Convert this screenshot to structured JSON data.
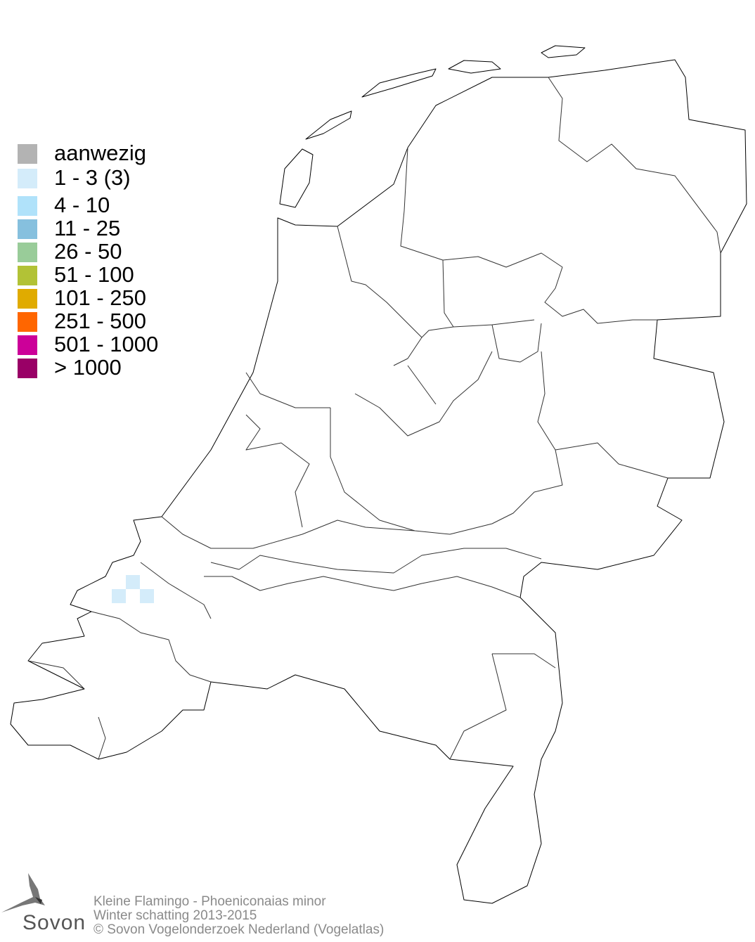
{
  "legend": {
    "items": [
      {
        "label": "aanwezig",
        "color": "#b3b3b3"
      },
      {
        "label": "1 - 3 (3)",
        "color": "#d4ecfa"
      },
      {
        "label": "4 - 10",
        "color": "#b0e2fa"
      },
      {
        "label": "11 - 25",
        "color": "#86c0de"
      },
      {
        "label": "26 - 50",
        "color": "#99cc99"
      },
      {
        "label": "51 - 100",
        "color": "#b2c236"
      },
      {
        "label": "101 - 250",
        "color": "#e0ab00"
      },
      {
        "label": "251 - 500",
        "color": "#ff6600"
      },
      {
        "label": "501 - 1000",
        "color": "#cc0099"
      },
      {
        "label": "> 1000",
        "color": "#990066"
      }
    ]
  },
  "map": {
    "occupied_cells_color": "#d4ecfa",
    "occupied_cells_class": "1 - 3 (3)",
    "occupied_cell_count": 3
  },
  "footer": {
    "species": "Kleine Flamingo - Phoeniconaias minor",
    "period": "Winter schatting 2013-2015",
    "copyright": "© Sovon Vogelonderzoek Nederland (Vogelatlas)"
  },
  "logo": {
    "text": "Sovon"
  }
}
